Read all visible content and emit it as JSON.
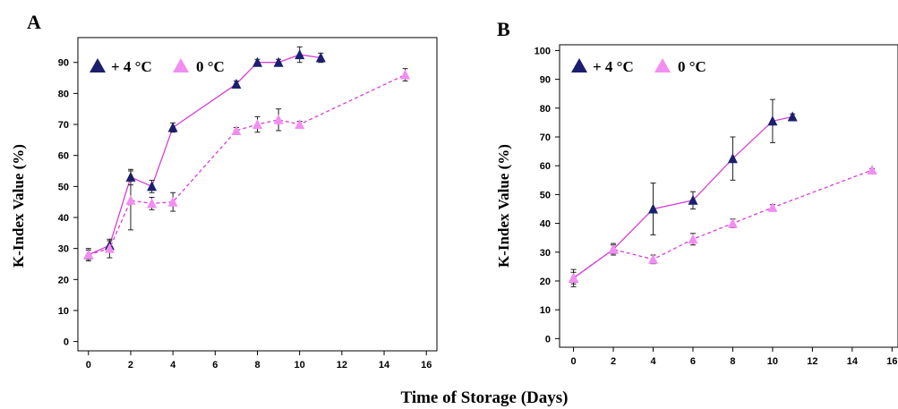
{
  "colors": {
    "warm_marker": "#1b1f6e",
    "cold_marker": "#f28ef2",
    "line": "#d63fd6",
    "error_bar": "#222222"
  },
  "figure": {
    "xlabel": "Time of Storage (Days)"
  },
  "chart_data": [
    {
      "type": "line",
      "panel": "A",
      "title": "",
      "ylabel": "K-Index Value (%)",
      "xlim": [
        -0.5,
        16.5
      ],
      "ylim": [
        -3,
        98
      ],
      "xticks": [
        0,
        2,
        4,
        6,
        8,
        10,
        12,
        14,
        16
      ],
      "xtick_labels": [
        "0",
        "2",
        "4",
        "6",
        "8",
        "10",
        "12",
        "14",
        "16"
      ],
      "yticks": [
        0,
        10,
        20,
        30,
        40,
        50,
        60,
        70,
        80,
        90
      ],
      "ytick_labels": [
        "0",
        "10",
        "20",
        "30",
        "40",
        "50",
        "60",
        "70",
        "80",
        "90"
      ],
      "legend": {
        "position": "top-left",
        "entries": [
          "+ 4 °C",
          "0 °C"
        ]
      },
      "grid": false,
      "series": [
        {
          "name": "+ 4 °C",
          "marker": "triangle",
          "line_style": "solid",
          "x": [
            0,
            1,
            2,
            3,
            4,
            7,
            8,
            9,
            10,
            11
          ],
          "y": [
            28,
            31,
            53,
            50,
            69,
            83,
            90,
            90,
            92.5,
            91.5
          ],
          "err": [
            1.5,
            1.5,
            2.5,
            2,
            1.5,
            1,
            1,
            1,
            2.5,
            1.5
          ]
        },
        {
          "name": "0 °C",
          "marker": "triangle",
          "line_style": "dashed",
          "x": [
            0,
            1,
            2,
            3,
            4,
            7,
            8,
            9,
            10,
            15
          ],
          "y": [
            28,
            30,
            45.5,
            44.5,
            45,
            68,
            70,
            71.5,
            70,
            86
          ],
          "err": [
            2,
            3,
            9.5,
            2,
            3,
            1,
            2.5,
            3.5,
            1,
            2
          ]
        }
      ]
    },
    {
      "type": "line",
      "panel": "B",
      "title": "",
      "ylabel": "K-Index Value (%)",
      "xlim": [
        -0.7,
        16.3
      ],
      "ylim": [
        -3,
        102
      ],
      "xticks": [
        0,
        2,
        4,
        6,
        8,
        10,
        12,
        14,
        16
      ],
      "xtick_labels": [
        "0",
        "2",
        "4",
        "6",
        "8",
        "10",
        "12",
        "14",
        "16"
      ],
      "yticks": [
        0,
        10,
        20,
        30,
        40,
        50,
        60,
        70,
        80,
        90,
        100
      ],
      "ytick_labels": [
        "0",
        "10",
        "20",
        "30",
        "40",
        "50",
        "60",
        "70",
        "80",
        "90",
        "100"
      ],
      "legend": {
        "position": "top-left",
        "entries": [
          "+ 4 °C",
          "0 °C"
        ]
      },
      "grid": false,
      "series": [
        {
          "name": "+ 4 °C",
          "marker": "triangle",
          "line_style": "solid",
          "x": [
            0,
            2,
            4,
            6,
            8,
            10,
            11
          ],
          "y": [
            21,
            31,
            45,
            48,
            62.5,
            75.5,
            77
          ],
          "err": [
            3,
            2,
            9,
            3,
            7.5,
            7.5,
            1
          ]
        },
        {
          "name": "0 °C",
          "marker": "triangle",
          "line_style": "dashed",
          "x": [
            0,
            2,
            4,
            6,
            8,
            10,
            15
          ],
          "y": [
            21,
            31,
            27.5,
            34.5,
            40,
            45.5,
            58.5
          ],
          "err": [
            2,
            1.5,
            1.5,
            2,
            1.5,
            1,
            0.5
          ]
        }
      ]
    }
  ]
}
